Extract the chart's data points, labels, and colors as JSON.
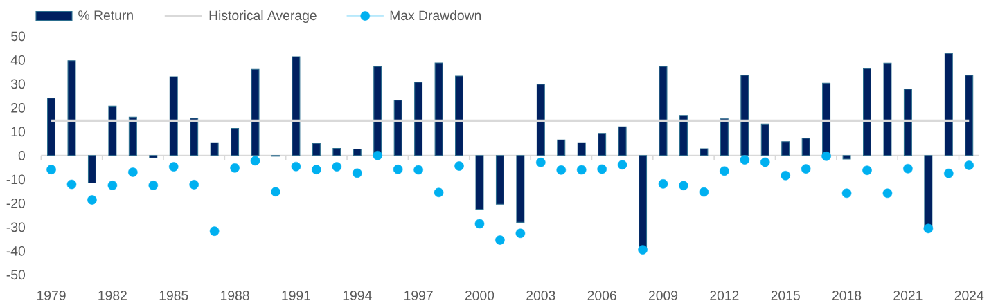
{
  "chart_data": {
    "type": "bar",
    "categories": [
      "1979",
      null,
      null,
      "1982",
      null,
      null,
      "1985",
      null,
      null,
      "1988",
      null,
      null,
      "1991",
      null,
      null,
      "1994",
      null,
      null,
      "1997",
      null,
      null,
      "2000",
      null,
      null,
      "2003",
      null,
      null,
      "2006",
      null,
      null,
      "2009",
      null,
      null,
      "2012",
      null,
      null,
      "2015",
      null,
      null,
      "2018",
      null,
      null,
      "2021",
      null,
      null,
      "2024"
    ],
    "series": [
      {
        "name": "% Return",
        "color": "#002060",
        "values": [
          24.1,
          39.7,
          -11.5,
          20.7,
          16.1,
          -1.0,
          33.0,
          15.6,
          5.4,
          11.4,
          36.1,
          -0.3,
          41.4,
          5.1,
          3.0,
          2.7,
          37.3,
          23.2,
          30.7,
          38.8,
          33.3,
          -22.5,
          -20.4,
          -28.0,
          29.8,
          6.5,
          5.4,
          9.3,
          12.0,
          -38.7,
          37.3,
          16.8,
          2.8,
          15.4,
          33.6,
          13.2,
          5.8,
          7.2,
          30.3,
          -1.5,
          36.4,
          38.7,
          27.8,
          -30.0,
          42.8,
          33.6
        ]
      },
      {
        "name": "Max Drawdown",
        "type": "scatter",
        "color": "#00B0F0",
        "marker": "circle",
        "values": [
          -5.9,
          -12.1,
          -18.6,
          -12.5,
          -7.0,
          -12.5,
          -4.7,
          -12.2,
          -31.7,
          -5.2,
          -2.2,
          -15.2,
          -4.6,
          -5.9,
          -4.7,
          -7.4,
          0,
          -5.8,
          -6.0,
          -15.5,
          -4.4,
          -28.6,
          -35.4,
          -32.6,
          -2.9,
          -6.1,
          -6.0,
          -5.7,
          -3.9,
          -39.5,
          -11.9,
          -12.6,
          -15.3,
          -6.5,
          -1.8,
          -2.8,
          -8.4,
          -5.6,
          -0.3,
          -15.8,
          -6.2,
          -15.8,
          -5.5,
          -30.6,
          -7.5,
          -4.1
        ]
      }
    ],
    "ref_lines": [
      {
        "axis": "y",
        "value": 14.5,
        "label": "Historical Average",
        "color": "#D9D9D9"
      }
    ],
    "ylim": [
      -50,
      50
    ],
    "yticks": [
      -50,
      -40,
      -30,
      -20,
      -10,
      0,
      10,
      20,
      30,
      40,
      50
    ],
    "legend": "top left"
  }
}
